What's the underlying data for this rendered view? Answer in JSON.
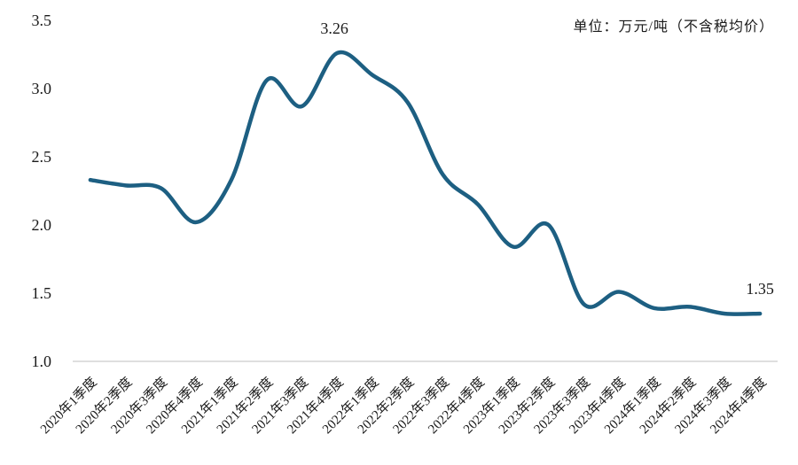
{
  "chart_data": {
    "type": "line",
    "title": "",
    "unit_label": "单位：万元/吨（不含税均价）",
    "xlabel": "",
    "ylabel": "",
    "ylim": [
      1.0,
      3.5
    ],
    "yticks": [
      "1.0",
      "1.5",
      "2.0",
      "2.5",
      "3.0",
      "3.5"
    ],
    "categories": [
      "2020年1季度",
      "2020年2季度",
      "2020年3季度",
      "2020年4季度",
      "2021年1季度",
      "2021年2季度",
      "2021年3季度",
      "2021年4季度",
      "2022年1季度",
      "2022年2季度",
      "2022年3季度",
      "2022年4季度",
      "2023年1季度",
      "2023年2季度",
      "2023年3季度",
      "2023年4季度",
      "2024年1季度",
      "2024年2季度",
      "2024年3季度",
      "2024年4季度"
    ],
    "series": [
      {
        "name": "不含税均价",
        "color": "#1d5f82",
        "values": [
          2.33,
          2.29,
          2.27,
          2.02,
          2.33,
          3.06,
          2.87,
          3.26,
          3.1,
          2.9,
          2.37,
          2.15,
          1.84,
          2.0,
          1.42,
          1.51,
          1.39,
          1.4,
          1.35,
          1.35
        ]
      }
    ],
    "data_labels": [
      {
        "index": 7,
        "text": "3.26"
      },
      {
        "index": 19,
        "text": "1.35"
      }
    ],
    "grid": false,
    "legend": "none"
  }
}
